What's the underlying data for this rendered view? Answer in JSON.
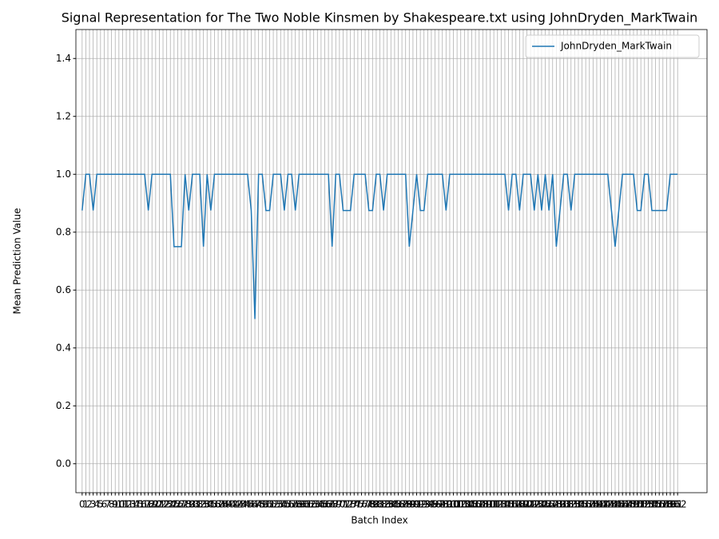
{
  "chart_data": {
    "type": "line",
    "title": "Signal Representation for The Two Noble Kinsmen by Shakespeare.txt using JohnDryden_MarkTwain",
    "xlabel": "Batch Index",
    "ylabel": "Mean Prediction Value",
    "x": [
      0,
      1,
      2,
      3,
      4,
      5,
      6,
      7,
      8,
      9,
      10,
      11,
      12,
      13,
      14,
      15,
      16,
      17,
      18,
      19,
      20,
      21,
      22,
      23,
      24,
      25,
      26,
      27,
      28,
      29,
      30,
      31,
      32,
      33,
      34,
      35,
      36,
      37,
      38,
      39,
      40,
      41,
      42,
      43,
      44,
      45,
      46,
      47,
      48,
      49,
      50,
      51,
      52,
      53,
      54,
      55,
      56,
      57,
      58,
      59,
      60,
      61,
      62,
      63,
      64,
      65,
      66,
      67,
      68,
      69,
      70,
      71,
      72,
      73,
      74,
      75,
      76,
      77,
      78,
      79,
      80,
      81,
      82,
      83,
      84,
      85,
      86,
      87,
      88,
      89,
      90,
      91,
      92,
      93,
      94,
      95,
      96,
      97,
      98,
      99,
      100,
      101,
      102,
      103,
      104,
      105,
      106,
      107,
      108,
      109,
      110,
      111,
      112,
      113,
      114,
      115,
      116,
      117,
      118,
      119,
      120,
      121,
      122,
      123,
      124,
      125,
      126,
      127,
      128,
      129,
      130,
      131,
      132,
      133,
      134,
      135,
      136,
      137,
      138,
      139,
      140,
      141,
      142,
      143,
      144,
      145,
      146,
      147,
      148,
      149,
      150,
      151,
      152,
      153,
      154,
      155,
      156,
      157,
      158,
      159,
      160,
      161,
      162
    ],
    "series": [
      {
        "name": "JohnDryden_MarkTwain",
        "color": "#1f77b4",
        "values": [
          0.875,
          1,
          1,
          0.875,
          1,
          1,
          1,
          1,
          1,
          1,
          1,
          1,
          1,
          1,
          1,
          1,
          1,
          1,
          0.875,
          1,
          1,
          1,
          1,
          1,
          1,
          0.75,
          0.75,
          0.75,
          1,
          0.875,
          1,
          1,
          1,
          0.75,
          1,
          0.875,
          1,
          1,
          1,
          1,
          1,
          1,
          1,
          1,
          1,
          1,
          0.875,
          0.5,
          1,
          1,
          0.875,
          0.875,
          1,
          1,
          1,
          0.875,
          1,
          1,
          0.875,
          1,
          1,
          1,
          1,
          1,
          1,
          1,
          1,
          1,
          0.75,
          1,
          1,
          0.875,
          0.875,
          0.875,
          1,
          1,
          1,
          1,
          0.875,
          0.875,
          1,
          1,
          0.875,
          1,
          1,
          1,
          1,
          1,
          1,
          0.75,
          0.875,
          1,
          0.875,
          0.875,
          1,
          1,
          1,
          1,
          1,
          0.875,
          1,
          1,
          1,
          1,
          1,
          1,
          1,
          1,
          1,
          1,
          1,
          1,
          1,
          1,
          1,
          1,
          0.875,
          1,
          1,
          0.875,
          1,
          1,
          1,
          0.875,
          1,
          0.875,
          1,
          0.875,
          1,
          0.75,
          0.875,
          1,
          1,
          0.875,
          1,
          1,
          1,
          1,
          1,
          1,
          1,
          1,
          1,
          1,
          0.875,
          0.75,
          0.875,
          1,
          1,
          1,
          1,
          0.875,
          0.875,
          1,
          1,
          0.875,
          0.875,
          0.875,
          0.875,
          0.875,
          1,
          1,
          1
        ]
      }
    ],
    "xlim": [
      -1.7,
      170
    ],
    "xticks": [
      0,
      1,
      2,
      3,
      4,
      5,
      6,
      7,
      8,
      9,
      10,
      11,
      12,
      13,
      14,
      15,
      16,
      17,
      18,
      19,
      20,
      21,
      22,
      23,
      24,
      25,
      26,
      27,
      28,
      29,
      30,
      31,
      32,
      33,
      34,
      35,
      36,
      37,
      38,
      39,
      40,
      41,
      42,
      43,
      44,
      45,
      46,
      47,
      48,
      49,
      50,
      51,
      52,
      53,
      54,
      55,
      56,
      57,
      58,
      59,
      60,
      61,
      62,
      63,
      64,
      65,
      66,
      67,
      68,
      69,
      70,
      71,
      72,
      73,
      74,
      75,
      76,
      77,
      78,
      79,
      80,
      81,
      82,
      83,
      84,
      85,
      86,
      87,
      88,
      89,
      90,
      91,
      92,
      93,
      94,
      95,
      96,
      97,
      98,
      99,
      100,
      101,
      102,
      103,
      104,
      105,
      106,
      107,
      108,
      109,
      110,
      111,
      112,
      113,
      114,
      115,
      116,
      117,
      118,
      119,
      120,
      121,
      122,
      123,
      124,
      125,
      126,
      127,
      128,
      129,
      130,
      131,
      132,
      133,
      134,
      135,
      136,
      137,
      138,
      139,
      140,
      141,
      142,
      143,
      144,
      145,
      146,
      147,
      148,
      149,
      150,
      151,
      152,
      153,
      154,
      155,
      156,
      157,
      158,
      159,
      160,
      161,
      162
    ],
    "ylim": [
      -0.1,
      1.5
    ],
    "yticks": [
      {
        "value": 0,
        "label": "0.0"
      },
      0.2,
      0.4,
      0.6,
      0.8,
      {
        "value": 1,
        "label": "1.0"
      },
      1.2,
      1.4
    ],
    "grid": true,
    "legend": "upper right"
  }
}
